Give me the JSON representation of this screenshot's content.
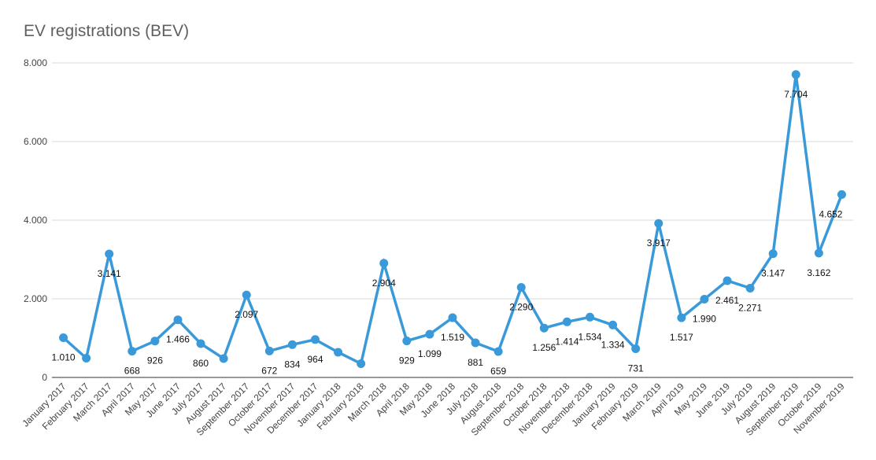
{
  "chart_data": {
    "type": "line",
    "title": "EV registrations (BEV)",
    "xlabel": "",
    "ylabel": "",
    "ylim": [
      0,
      8000
    ],
    "yticks": [
      0,
      2000,
      4000,
      6000,
      8000
    ],
    "ytick_labels": [
      "0",
      "2.000",
      "4.000",
      "6.000",
      "8.000"
    ],
    "grid": true,
    "legend": "none",
    "color": "#3a9ad9",
    "categories": [
      "January 2017",
      "February 2017",
      "March 2017",
      "April 2017",
      "May 2017",
      "June 2017",
      "July 2017",
      "August 2017",
      "September 2017",
      "October 2017",
      "November 2017",
      "December 2017",
      "January 2018",
      "February 2018",
      "March 2018",
      "April 2018",
      "May 2018",
      "June 2018",
      "July 2018",
      "August 2018",
      "September 2018",
      "October 2018",
      "November 2018",
      "December 2018",
      "January 2019",
      "February 2019",
      "March 2019",
      "April 2019",
      "May 2019",
      "June 2019",
      "July 2019",
      "August 2019",
      "September 2019",
      "October 2019",
      "November 2019"
    ],
    "values": [
      1010,
      490,
      3141,
      668,
      926,
      1466,
      860,
      480,
      2097,
      672,
      834,
      964,
      640,
      350,
      2904,
      929,
      1099,
      1519,
      881,
      659,
      2290,
      1256,
      1414,
      1534,
      1334,
      731,
      3917,
      1517,
      1990,
      2461,
      2271,
      3147,
      7704,
      3162,
      4652
    ],
    "data_labels": [
      "1.010",
      "",
      "3.141",
      "668",
      "926",
      "1.466",
      "860",
      "",
      "2.097",
      "672",
      "834",
      "964",
      "",
      "",
      "2.904",
      "929",
      "1.099",
      "1.519",
      "881",
      "659",
      "2.290",
      "1.256",
      "1.414",
      "1.534",
      "1.334",
      "731",
      "3.917",
      "1.517",
      "1.990",
      "2.461",
      "2.271",
      "3.147",
      "7.704",
      "3.162",
      "4.652"
    ]
  }
}
